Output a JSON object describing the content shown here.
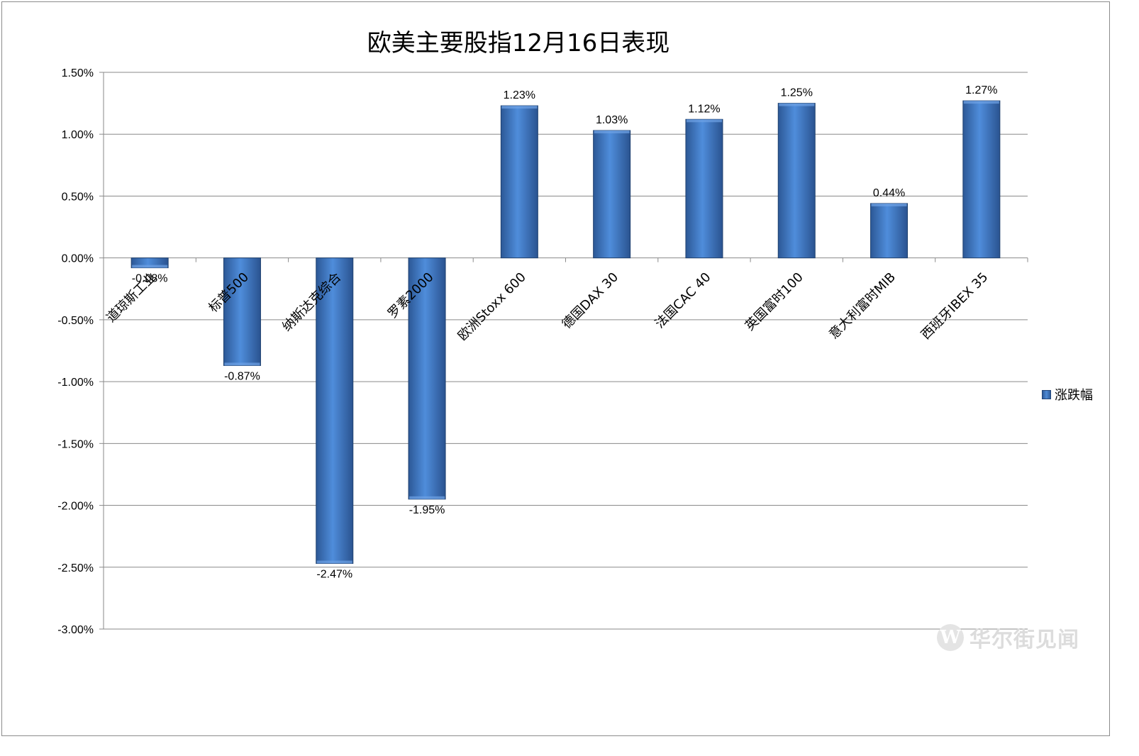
{
  "chart_data": {
    "type": "bar",
    "title": "欧美主要股指12月16日表现",
    "xlabel": "",
    "ylabel": "",
    "categories": [
      "道琼斯工业",
      "标普500",
      "纳斯达克综合",
      "罗素2000",
      "欧洲Stoxx 600",
      "德国DAX 30",
      "法国CAC 40",
      "英国富时100",
      "意大利富时MIB",
      "西班牙IBEX 35"
    ],
    "series": [
      {
        "name": "涨跌幅",
        "values": [
          -0.08,
          -0.87,
          -2.47,
          -1.95,
          1.23,
          1.03,
          1.12,
          1.25,
          0.44,
          1.27
        ],
        "labels": [
          "-0.08%",
          "-0.87%",
          "-2.47%",
          "-1.95%",
          "1.23%",
          "1.03%",
          "1.12%",
          "1.25%",
          "0.44%",
          "1.27%"
        ]
      }
    ],
    "ylim": [
      -3.0,
      1.5
    ],
    "yticks": [
      1.5,
      1.0,
      0.5,
      0.0,
      -0.5,
      -1.0,
      -1.5,
      -2.0,
      -2.5,
      -3.0
    ],
    "ytick_labels": [
      "1.50%",
      "1.00%",
      "0.50%",
      "0.00%",
      "-0.50%",
      "-1.00%",
      "-1.50%",
      "-2.00%",
      "-2.50%",
      "-3.00%"
    ],
    "grid": "horizontal",
    "legend": "right",
    "colors": {
      "bar": "#4a86d0",
      "bar_dark": "#22467a"
    }
  },
  "watermark": {
    "text": "华尔街见闻",
    "logo_glyph": "W"
  }
}
